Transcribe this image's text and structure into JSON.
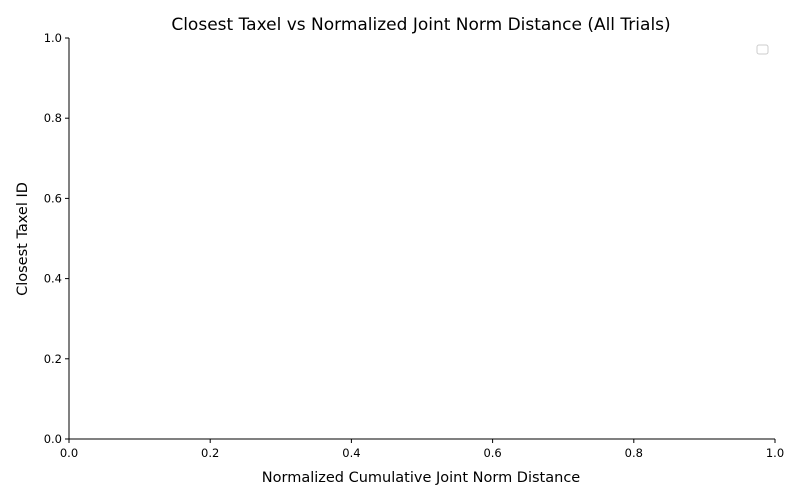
{
  "chart_data": {
    "type": "scatter",
    "title": "Closest Taxel vs Normalized Joint Norm Distance (All Trials)",
    "xlabel": "Normalized Cumulative Joint Norm Distance",
    "ylabel": "Closest Taxel ID",
    "xlim": [
      0.0,
      1.0
    ],
    "ylim": [
      0.0,
      1.0
    ],
    "xticks": [
      "0.0",
      "0.2",
      "0.4",
      "0.6",
      "0.8",
      "1.0"
    ],
    "yticks": [
      "0.0",
      "0.2",
      "0.4",
      "0.6",
      "0.8",
      "1.0"
    ],
    "series": [],
    "grid": false,
    "legend": {
      "placement": "top-right",
      "entries": []
    },
    "spines": {
      "top": false,
      "right": false,
      "left": true,
      "bottom": true
    }
  }
}
